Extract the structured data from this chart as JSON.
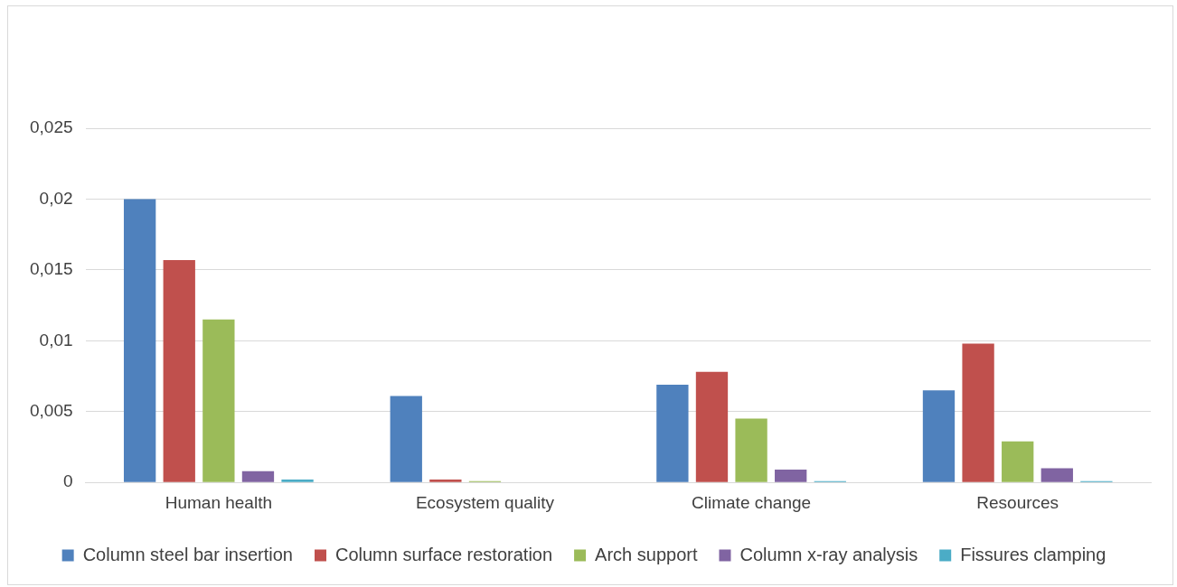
{
  "chart_data": {
    "type": "bar",
    "categories": [
      "Human health",
      "Ecosystem quality",
      "Climate change",
      "Resources"
    ],
    "series": [
      {
        "name": "Column steel bar insertion",
        "color": "#4f81bd",
        "values": [
          0.02,
          0.0061,
          0.0069,
          0.0065
        ]
      },
      {
        "name": "Column surface restoration",
        "color": "#c0504d",
        "values": [
          0.0157,
          0.0002,
          0.0078,
          0.0098
        ]
      },
      {
        "name": "Arch support",
        "color": "#9bbb59",
        "values": [
          0.0115,
          0.0001,
          0.0045,
          0.0029
        ]
      },
      {
        "name": "Column x-ray analysis",
        "color": "#8064a2",
        "values": [
          0.0008,
          0,
          0.0009,
          0.001
        ]
      },
      {
        "name": "Fissures clamping",
        "color": "#4bacc6",
        "values": [
          0.0002,
          0,
          0.0001,
          0.0001
        ]
      }
    ],
    "ylim": [
      0,
      0.025
    ],
    "yticks": [
      {
        "value": 0,
        "label": "0"
      },
      {
        "value": 0.005,
        "label": "0,005"
      },
      {
        "value": 0.01,
        "label": "0,01"
      },
      {
        "value": 0.015,
        "label": "0,015"
      },
      {
        "value": 0.02,
        "label": "0,02"
      },
      {
        "value": 0.025,
        "label": "0,025"
      }
    ],
    "grid": "y",
    "legend": "bottom"
  }
}
